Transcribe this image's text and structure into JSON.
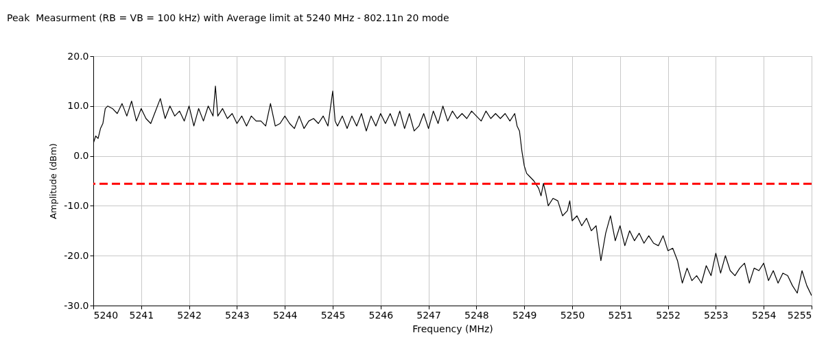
{
  "chart_data": {
    "type": "line",
    "title": "Peak  Measurment (RB = VB = 100 kHz) with Average limit at 5240 MHz - 802.11n 20 mode",
    "xlabel": "Frequency (MHz)",
    "ylabel": "Amplitude (dBm)",
    "xlim": [
      5240,
      5255
    ],
    "xticks": [
      5240,
      5241,
      5242,
      5243,
      5244,
      5245,
      5246,
      5247,
      5248,
      5249,
      5250,
      5251,
      5252,
      5253,
      5254,
      5255
    ],
    "ylim": [
      -30,
      20
    ],
    "yticks": [
      {
        "value": -30,
        "label": "-30.0"
      },
      {
        "value": -20,
        "label": "-20.0"
      },
      {
        "value": -10,
        "label": "-10.0"
      },
      {
        "value": 0,
        "label": "0.0"
      },
      {
        "value": 10,
        "label": "10.0"
      },
      {
        "value": 20,
        "label": "20.0"
      }
    ],
    "grid": true,
    "line_style": "solid",
    "series": [
      {
        "color": "#000000",
        "x": [
          5240.0,
          5240.05,
          5240.1,
          5240.15,
          5240.2,
          5240.25,
          5240.3,
          5240.4,
          5240.5,
          5240.6,
          5240.7,
          5240.8,
          5240.9,
          5241.0,
          5241.1,
          5241.2,
          5241.3,
          5241.4,
          5241.5,
          5241.6,
          5241.7,
          5241.8,
          5241.9,
          5242.0,
          5242.1,
          5242.2,
          5242.3,
          5242.4,
          5242.5,
          5242.55,
          5242.6,
          5242.7,
          5242.8,
          5242.9,
          5243.0,
          5243.1,
          5243.2,
          5243.3,
          5243.4,
          5243.5,
          5243.6,
          5243.7,
          5243.8,
          5243.9,
          5244.0,
          5244.1,
          5244.2,
          5244.3,
          5244.4,
          5244.5,
          5244.6,
          5244.7,
          5244.8,
          5244.9,
          5245.0,
          5245.05,
          5245.1,
          5245.2,
          5245.3,
          5245.4,
          5245.5,
          5245.6,
          5245.7,
          5245.8,
          5245.9,
          5246.0,
          5246.1,
          5246.2,
          5246.3,
          5246.4,
          5246.5,
          5246.6,
          5246.7,
          5246.8,
          5246.9,
          5247.0,
          5247.1,
          5247.2,
          5247.3,
          5247.4,
          5247.5,
          5247.6,
          5247.7,
          5247.8,
          5247.9,
          5248.0,
          5248.1,
          5248.2,
          5248.3,
          5248.4,
          5248.5,
          5248.6,
          5248.7,
          5248.8,
          5248.85,
          5248.9,
          5248.95,
          5249.0,
          5249.05,
          5249.1,
          5249.2,
          5249.3,
          5249.35,
          5249.4,
          5249.45,
          5249.5,
          5249.6,
          5249.7,
          5249.8,
          5249.9,
          5249.95,
          5250.0,
          5250.1,
          5250.2,
          5250.3,
          5250.4,
          5250.5,
          5250.6,
          5250.7,
          5250.8,
          5250.9,
          5251.0,
          5251.1,
          5251.2,
          5251.3,
          5251.4,
          5251.5,
          5251.6,
          5251.7,
          5251.8,
          5251.9,
          5252.0,
          5252.1,
          5252.2,
          5252.3,
          5252.4,
          5252.5,
          5252.6,
          5252.7,
          5252.8,
          5252.9,
          5253.0,
          5253.1,
          5253.2,
          5253.3,
          5253.4,
          5253.5,
          5253.6,
          5253.7,
          5253.8,
          5253.9,
          5254.0,
          5254.1,
          5254.2,
          5254.3,
          5254.4,
          5254.5,
          5254.6,
          5254.7,
          5254.8,
          5254.9,
          5255.0
        ],
        "values": [
          2.5,
          4,
          3.5,
          5.5,
          6.5,
          9.5,
          10,
          9.5,
          8.5,
          10.5,
          8,
          11,
          7,
          9.5,
          7.5,
          6.5,
          9,
          11.5,
          7.5,
          10,
          8,
          9,
          7,
          10,
          6,
          9.5,
          7,
          10,
          8,
          14,
          8,
          9.5,
          7.5,
          8.5,
          6.5,
          8,
          6,
          8,
          7,
          7,
          6,
          10.5,
          6,
          6.5,
          8,
          6.5,
          5.5,
          8,
          5.5,
          7,
          7.5,
          6.5,
          8,
          6,
          13,
          7,
          6,
          8,
          5.5,
          8,
          6,
          8.5,
          5,
          8,
          6,
          8.5,
          6.5,
          8.5,
          6,
          9,
          5.5,
          8.5,
          5,
          6,
          8.5,
          5.5,
          9,
          6.5,
          10,
          7,
          9,
          7.5,
          8.5,
          7.5,
          9,
          8,
          7,
          9,
          7.5,
          8.5,
          7.5,
          8.5,
          7,
          8.5,
          6,
          5,
          1,
          -2,
          -3.5,
          -4,
          -5,
          -6.5,
          -8,
          -5.5,
          -7.5,
          -10,
          -8.5,
          -9,
          -12,
          -11,
          -9,
          -13,
          -12,
          -14,
          -12.5,
          -15,
          -14,
          -21,
          -15.5,
          -12,
          -17,
          -14,
          -18,
          -15,
          -17,
          -15.5,
          -17.5,
          -16,
          -17.5,
          -18,
          -16,
          -19,
          -18.5,
          -21,
          -25.5,
          -22.5,
          -25,
          -24,
          -25.5,
          -22,
          -24,
          -19.5,
          -23.5,
          -20,
          -23,
          -24,
          -22.5,
          -21.5,
          -25.5,
          -22.5,
          -23,
          -21.5,
          -25,
          -23,
          -25.5,
          -23.5,
          -24,
          -26,
          -27.5,
          -23,
          -26,
          -28
        ]
      }
    ],
    "ref_lines": [
      {
        "axis": "y",
        "value": -5.6,
        "color": "#ff0000",
        "line_style": "dashed"
      }
    ]
  }
}
